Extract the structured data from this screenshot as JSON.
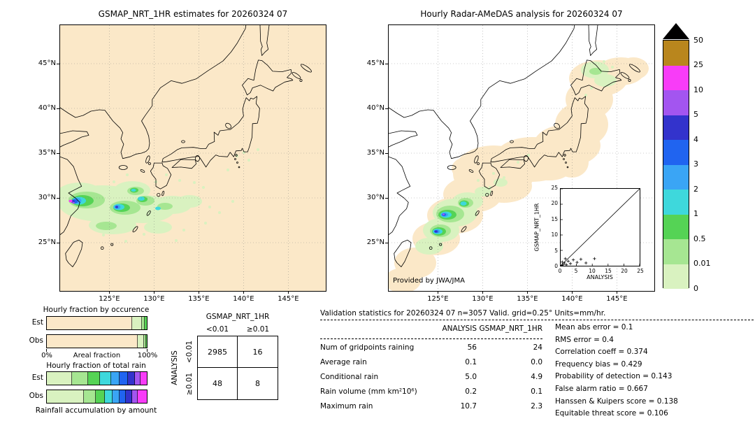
{
  "palette": {
    "background": "#ffffff",
    "nodata_fill": "#fbe8c8",
    "band_colors_top_to_bottom": [
      "#b9861d",
      "#f83cf8",
      "#a355f0",
      "#3333cc",
      "#2064f0",
      "#3aa5f5",
      "#3ed8dc",
      "#55d355",
      "#a6e692",
      "#d9f2c0"
    ],
    "over_range_color": "#000000"
  },
  "left_map": {
    "title": "GSMAP_NRT_1HR estimates for 20260324 07",
    "lat_ticks": [
      "45°N",
      "40°N",
      "35°N",
      "30°N",
      "25°N"
    ],
    "lon_ticks": [
      "125°E",
      "130°E",
      "135°E",
      "140°E",
      "145°E"
    ]
  },
  "right_map": {
    "title": "Hourly Radar-AMeDAS analysis for 20260324 07",
    "lat_ticks": [
      "45°N",
      "40°N",
      "35°N",
      "30°N",
      "25°N"
    ],
    "lon_ticks": [
      "125°E",
      "130°E",
      "135°E",
      "140°E",
      "145°E"
    ],
    "credit": "Provided by JWA/JMA"
  },
  "inset": {
    "xlabel": "ANALYSIS",
    "ylabel": "GSMAP_NRT_1HR",
    "x_ticks": [
      "0",
      "5",
      "10",
      "15",
      "20",
      "25"
    ],
    "y_ticks": [
      "0",
      "5",
      "10",
      "15",
      "20",
      "25"
    ]
  },
  "colorbar": {
    "tick_labels_top_to_bottom": [
      "50",
      "25",
      "10",
      "5",
      "4",
      "3",
      "2",
      "1",
      "0.5",
      "0.01",
      "0"
    ]
  },
  "fraction_occurrence": {
    "title": "Hourly fraction by occurence",
    "row_labels": [
      "Est",
      "Obs"
    ],
    "axis_left": "0%",
    "axis_center": "Areal fraction",
    "axis_right": "100%",
    "bars": {
      "est": [
        {
          "color": "#fbe8c8",
          "pct": 85
        },
        {
          "color": "#d9f2c0",
          "pct": 10
        },
        {
          "color": "#a6e692",
          "pct": 3
        },
        {
          "color": "#55d355",
          "pct": 2
        }
      ],
      "obs": [
        {
          "color": "#fbe8c8",
          "pct": 91
        },
        {
          "color": "#d9f2c0",
          "pct": 6
        },
        {
          "color": "#a6e692",
          "pct": 2
        },
        {
          "color": "#55d355",
          "pct": 1
        }
      ]
    }
  },
  "fraction_total_rain": {
    "title": "Hourly fraction of total rain",
    "row_labels": [
      "Est",
      "Obs"
    ],
    "caption": "Rainfall accumulation by amount",
    "bars": {
      "est": [
        {
          "color": "#d9f2c0",
          "pct": 25
        },
        {
          "color": "#a6e692",
          "pct": 16
        },
        {
          "color": "#55d355",
          "pct": 12
        },
        {
          "color": "#3ed8dc",
          "pct": 11
        },
        {
          "color": "#3aa5f5",
          "pct": 9
        },
        {
          "color": "#2064f0",
          "pct": 8
        },
        {
          "color": "#3333cc",
          "pct": 7
        },
        {
          "color": "#a355f0",
          "pct": 6
        },
        {
          "color": "#f83cf8",
          "pct": 6
        }
      ],
      "obs": [
        {
          "color": "#d9f2c0",
          "pct": 37
        },
        {
          "color": "#a6e692",
          "pct": 12
        },
        {
          "color": "#55d355",
          "pct": 9
        },
        {
          "color": "#3ed8dc",
          "pct": 8
        },
        {
          "color": "#3aa5f5",
          "pct": 7
        },
        {
          "color": "#2064f0",
          "pct": 6
        },
        {
          "color": "#3333cc",
          "pct": 6
        },
        {
          "color": "#a355f0",
          "pct": 6
        },
        {
          "color": "#f83cf8",
          "pct": 9
        }
      ]
    }
  },
  "contingency": {
    "col_header": "GSMAP_NRT_1HR",
    "row_header": "ANALYSIS",
    "col_labels": [
      "<0.01",
      "≥0.01"
    ],
    "row_labels": [
      "<0.01",
      "≥0.01"
    ],
    "values": [
      [
        "2985",
        "16"
      ],
      [
        "48",
        "8"
      ]
    ]
  },
  "validation": {
    "title": "Validation statistics for 20260324 07  n=3057 Valid. grid=0.25° Units=mm/hr.",
    "col_headers": [
      "ANALYSIS",
      "GSMAP_NRT_1HR"
    ],
    "rows": [
      {
        "label": "Num of gridpoints raining",
        "analysis": "56",
        "gsmap": "24"
      },
      {
        "label": "Average rain",
        "analysis": "0.1",
        "gsmap": "0.0"
      },
      {
        "label": "Conditional rain",
        "analysis": "5.0",
        "gsmap": "4.9"
      },
      {
        "label": "Rain volume (mm km²10⁶)",
        "analysis": "0.2",
        "gsmap": "0.1"
      },
      {
        "label": "Maximum rain",
        "analysis": "10.7",
        "gsmap": "2.3"
      }
    ],
    "scores": [
      {
        "label": "Mean abs error",
        "value": "0.1"
      },
      {
        "label": "RMS error",
        "value": "0.4"
      },
      {
        "label": "Correlation coeff",
        "value": "0.374"
      },
      {
        "label": "Frequency bias",
        "value": "0.429"
      },
      {
        "label": "Probability of detection",
        "value": "0.143"
      },
      {
        "label": "False alarm ratio",
        "value": "0.667"
      },
      {
        "label": "Hanssen & Kuipers score",
        "value": "0.138"
      },
      {
        "label": "Equitable threat score",
        "value": "0.106"
      }
    ]
  },
  "chart_data": [
    {
      "type": "heatmap",
      "name": "gsmap_precipitation_map",
      "title": "GSMAP_NRT_1HR estimates for 20260324 07",
      "units": "mm/hr",
      "x_ticks": [
        "125°E",
        "130°E",
        "135°E",
        "140°E",
        "145°E"
      ],
      "y_ticks": [
        "45°N",
        "40°N",
        "35°N",
        "30°N",
        "25°N"
      ],
      "levels": [
        0,
        0.01,
        0.5,
        1,
        2,
        3,
        4,
        5,
        10,
        25,
        50
      ],
      "summary": "Rain area over the East China Sea near 27-33N / 121-133E with embedded cores of 1-10 mm/hr and an isolated >10 mm/hr cell near 30N 122E; scattered light rain (<0.5 mm/hr) specks elsewhere; whole domain shaded 0 mm/hr background."
    },
    {
      "type": "heatmap",
      "name": "radar_amedas_map",
      "title": "Hourly Radar-AMeDAS analysis for 20260324 07",
      "units": "mm/hr",
      "x_ticks": [
        "125°E",
        "130°E",
        "135°E",
        "140°E",
        "145°E"
      ],
      "y_ticks": [
        "45°N",
        "40°N",
        "35°N",
        "30°N",
        "25°N"
      ],
      "levels": [
        0,
        0.01,
        0.5,
        1,
        2,
        3,
        4,
        5,
        10,
        25,
        50
      ],
      "summary": "Radar coverage (0 mm/hr shading) along the Japanese archipelago from the Ryukyu islands to Hokkaido; rain band near the Amami-Okinawa islands (26-31N / 126-131E) with cores up to ~10 mm/hr; light rain over eastern Hokkaido."
    },
    {
      "type": "scatter",
      "name": "validation_scatter",
      "xlabel": "ANALYSIS",
      "ylabel": "GSMAP_NRT_1HR",
      "xlim": [
        0,
        25
      ],
      "ylim": [
        0,
        25
      ],
      "diagonal": true,
      "points": [
        [
          0.3,
          0.1
        ],
        [
          0.8,
          0.4
        ],
        [
          1.2,
          0.9
        ],
        [
          1.8,
          0.3
        ],
        [
          2.4,
          1.5
        ],
        [
          3.1,
          0.7
        ],
        [
          4.0,
          1.9
        ],
        [
          5.2,
          1.1
        ],
        [
          6.4,
          2.1
        ],
        [
          8.0,
          0.9
        ],
        [
          10.7,
          2.3
        ],
        [
          1.5,
          2.3
        ],
        [
          0.5,
          1.2
        ]
      ]
    },
    {
      "type": "bar",
      "name": "hourly_fraction_by_occurrence",
      "stacked": true,
      "orientation": "horizontal",
      "categories": [
        "Est",
        "Obs"
      ],
      "series_levels": [
        "0",
        "0-0.01",
        "0.01-0.5",
        "0.5-1"
      ],
      "values_pct": {
        "Est": [
          85,
          10,
          3,
          2
        ],
        "Obs": [
          91,
          6,
          2,
          1
        ]
      },
      "xlabel": "Areal fraction",
      "xlim_pct": [
        0,
        100
      ]
    },
    {
      "type": "bar",
      "name": "hourly_fraction_of_total_rain",
      "stacked": true,
      "orientation": "horizontal",
      "categories": [
        "Est",
        "Obs"
      ],
      "series_levels": [
        "0-0.01",
        "0.01-0.5",
        "0.5-1",
        "1-2",
        "2-3",
        "3-4",
        "4-5",
        "5-10",
        "10-25"
      ],
      "values_pct": {
        "Est": [
          25,
          16,
          12,
          11,
          9,
          8,
          7,
          6,
          6
        ],
        "Obs": [
          37,
          12,
          9,
          8,
          7,
          6,
          6,
          6,
          9
        ]
      },
      "caption": "Rainfall accumulation by amount"
    },
    {
      "type": "table",
      "name": "contingency_table",
      "col_group": "GSMAP_NRT_1HR",
      "row_group": "ANALYSIS",
      "cols": [
        "<0.01",
        "≥0.01"
      ],
      "rows": [
        "<0.01",
        "≥0.01"
      ],
      "values": [
        [
          2985,
          16
        ],
        [
          48,
          8
        ]
      ]
    },
    {
      "type": "table",
      "name": "validation_statistics",
      "n": 3057,
      "columns": [
        "ANALYSIS",
        "GSMAP_NRT_1HR"
      ],
      "rows": [
        [
          "Num of gridpoints raining",
          56,
          24
        ],
        [
          "Average rain",
          0.1,
          0.0
        ],
        [
          "Conditional rain",
          5.0,
          4.9
        ],
        [
          "Rain volume (mm km²10⁶)",
          0.2,
          0.1
        ],
        [
          "Maximum rain",
          10.7,
          2.3
        ]
      ],
      "scores": {
        "Mean abs error": 0.1,
        "RMS error": 0.4,
        "Correlation coeff": 0.374,
        "Frequency bias": 0.429,
        "Probability of detection": 0.143,
        "False alarm ratio": 0.667,
        "Hanssen & Kuipers score": 0.138,
        "Equitable threat score": 0.106
      }
    }
  ]
}
